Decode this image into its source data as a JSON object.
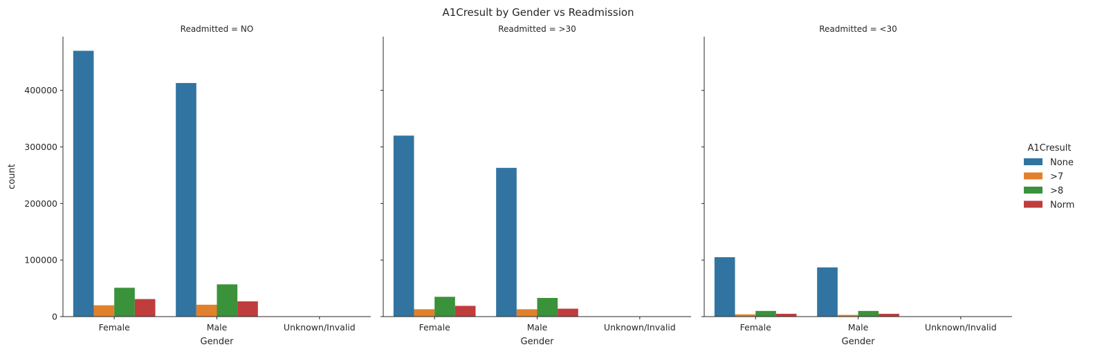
{
  "chart_data": {
    "type": "bar",
    "title": "A1Cresult by Gender vs Readmission",
    "categories": [
      "Female",
      "Male",
      "Unknown/Invalid"
    ],
    "xlabel": "Gender",
    "ylabel": "count",
    "ylim": [
      0,
      495000
    ],
    "yticks": [
      0,
      100000,
      200000,
      300000,
      400000
    ],
    "yticks_text": [
      "0",
      "100000",
      "200000",
      "300000",
      "400000"
    ],
    "grid": false,
    "legend": {
      "title": "A1Cresult",
      "placement": "right",
      "items": [
        "None",
        ">7",
        ">8",
        "Norm"
      ]
    },
    "colors": {
      "None": "#3274a1",
      ">7": "#e1812c",
      ">8": "#3a923a",
      "Norm": "#c03d3e"
    },
    "panels": [
      {
        "title": "Readmitted = NO",
        "series": [
          {
            "name": "None",
            "values": [
              470000,
              413000,
              0
            ]
          },
          {
            "name": ">7",
            "values": [
              20000,
              21000,
              0
            ]
          },
          {
            "name": ">8",
            "values": [
              51000,
              57000,
              0
            ]
          },
          {
            "name": "Norm",
            "values": [
              31000,
              27000,
              0
            ]
          }
        ]
      },
      {
        "title": "Readmitted = >30",
        "series": [
          {
            "name": "None",
            "values": [
              320000,
              263000,
              0
            ]
          },
          {
            "name": ">7",
            "values": [
              13000,
              13000,
              0
            ]
          },
          {
            "name": ">8",
            "values": [
              35000,
              33000,
              0
            ]
          },
          {
            "name": "Norm",
            "values": [
              19000,
              14000,
              0
            ]
          }
        ]
      },
      {
        "title": "Readmitted = <30",
        "series": [
          {
            "name": "None",
            "values": [
              105000,
              87000,
              0
            ]
          },
          {
            "name": ">7",
            "values": [
              4000,
              3000,
              0
            ]
          },
          {
            "name": ">8",
            "values": [
              10000,
              10000,
              0
            ]
          },
          {
            "name": "Norm",
            "values": [
              5000,
              5000,
              0
            ]
          }
        ]
      }
    ]
  }
}
